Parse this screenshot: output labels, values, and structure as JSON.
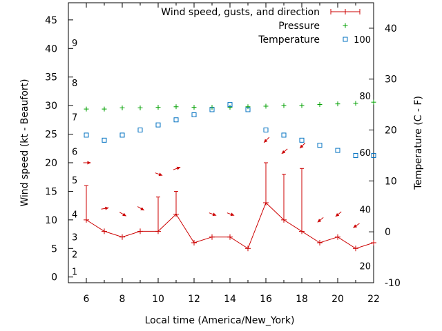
{
  "chart_data": {
    "type": "line",
    "xlabel": "Local time (America/New_York)",
    "ylabel": "Wind speed (kt - Beaufort)",
    "y2label": "Temperature (C - F)",
    "xlim": [
      5,
      22
    ],
    "ylim": [
      -1,
      48
    ],
    "y2lim": [
      -10,
      45
    ],
    "x_ticks": [
      6,
      8,
      10,
      12,
      14,
      16,
      18,
      20,
      22
    ],
    "y_ticks": [
      0,
      5,
      10,
      15,
      20,
      25,
      30,
      35,
      40,
      45
    ],
    "y2_ticks": [
      -10,
      0,
      10,
      20,
      30,
      40
    ],
    "beaufort_labels": [
      {
        "label": "1",
        "kt": 1
      },
      {
        "label": "2",
        "kt": 4
      },
      {
        "label": "3",
        "kt": 7
      },
      {
        "label": "4",
        "kt": 11
      },
      {
        "label": "5",
        "kt": 17
      },
      {
        "label": "6",
        "kt": 22
      },
      {
        "label": "7",
        "kt": 28
      },
      {
        "label": "8",
        "kt": 34
      },
      {
        "label": "9",
        "kt": 41
      }
    ],
    "fahrenheit_labels": [
      {
        "label": "20",
        "celsius": -6.7
      },
      {
        "label": "40",
        "celsius": 4.4
      },
      {
        "label": "60",
        "celsius": 15.6
      },
      {
        "label": "80",
        "celsius": 26.7
      },
      {
        "label": "100",
        "celsius": 37.8
      }
    ],
    "legend": {
      "position": "top-right"
    },
    "series": [
      {
        "name": "Wind speed, gusts, and direction",
        "color": "#cc0000",
        "x": [
          6,
          7,
          8,
          9,
          10,
          11,
          12,
          13,
          14,
          15,
          16,
          17,
          18,
          19,
          20,
          21,
          22
        ],
        "speed": [
          10,
          8,
          7,
          8,
          8,
          11,
          6,
          7,
          7,
          5,
          13,
          10,
          8,
          6,
          7,
          5,
          6
        ],
        "gusts": [
          16,
          null,
          null,
          null,
          14,
          15,
          null,
          null,
          null,
          null,
          20,
          18,
          19,
          null,
          null,
          null,
          null
        ],
        "direction_deg": [
          270,
          260,
          300,
          300,
          290,
          250,
          250,
          290,
          290,
          null,
          45,
          50,
          45,
          50,
          50,
          55,
          null
        ],
        "arrow_y": [
          20,
          12,
          11,
          12,
          18,
          19,
          null,
          11,
          11,
          null,
          24,
          22,
          23,
          10,
          11,
          9,
          null
        ]
      },
      {
        "name": "Pressure",
        "color": "#00a000",
        "marker": "plus",
        "x": [
          6,
          7,
          8,
          9,
          10,
          11,
          12,
          13,
          14,
          15,
          16,
          17,
          18,
          19,
          20,
          21,
          22
        ],
        "values": [
          29.4,
          29.4,
          29.6,
          29.6,
          29.7,
          29.8,
          29.7,
          29.7,
          29.7,
          29.8,
          29.9,
          30.0,
          30.0,
          30.2,
          30.3,
          30.4,
          30.6
        ]
      },
      {
        "name": "Temperature",
        "color": "#0070c0",
        "marker": "square",
        "axis": "y2",
        "x": [
          6,
          7,
          8,
          9,
          10,
          11,
          12,
          13,
          14,
          15,
          16,
          17,
          18,
          19,
          20,
          21,
          22
        ],
        "values": [
          19,
          18,
          19,
          20,
          21,
          22,
          23,
          24,
          25,
          24,
          20,
          19,
          18,
          17,
          16,
          15,
          15
        ]
      }
    ]
  }
}
